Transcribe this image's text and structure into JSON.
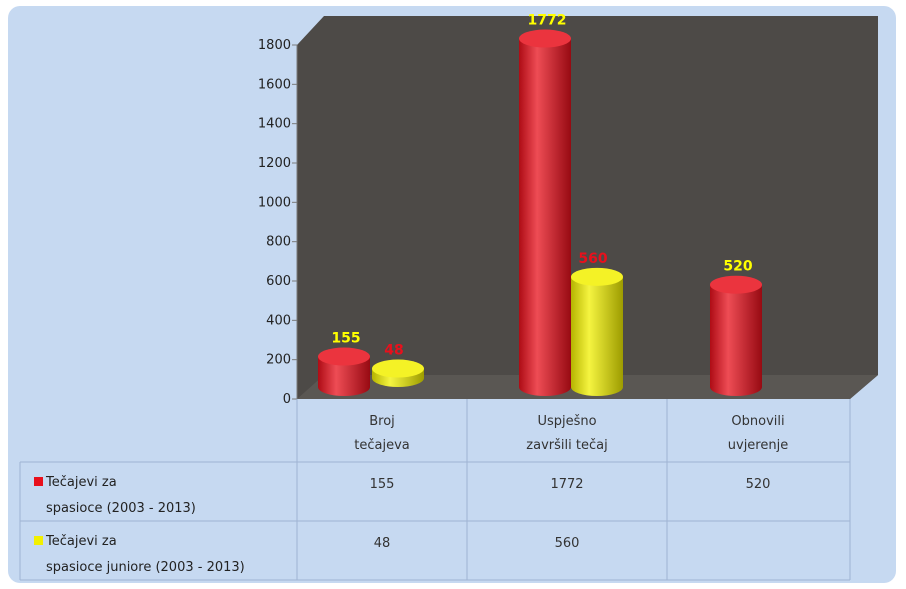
{
  "chart_data": {
    "type": "bar",
    "title": "",
    "xlabel": "",
    "ylabel": "",
    "ylim": [
      0,
      1800
    ],
    "yticks": [
      0,
      200,
      400,
      600,
      800,
      1000,
      1200,
      1400,
      1600,
      1800
    ],
    "categories": [
      [
        "Broj",
        "tečajeva"
      ],
      [
        "Uspješno",
        "završili tečaj"
      ],
      [
        "Obnovili",
        "uvjerenje"
      ]
    ],
    "series": [
      {
        "name": "Tečajevi za spasioce (2003 - 2013)",
        "name_lines": [
          "Tečajevi za",
          "spasioce (2003 - 2013)"
        ],
        "color": "#e8101c",
        "label_color": "#ffff00",
        "values": [
          155,
          1772,
          520
        ],
        "value_labels": [
          "155",
          "1772",
          "520"
        ]
      },
      {
        "name": "Tečajevi za spasioce juniore (2003 - 2013)",
        "name_lines": [
          "Tečajevi za",
          "spasioce juniore (2003 - 2013)"
        ],
        "color": "#f2f000",
        "label_color": "#e8101c",
        "values": [
          48,
          560,
          null
        ],
        "value_labels": [
          "48",
          "560",
          ""
        ]
      }
    ],
    "grid": false,
    "legend": "data-table",
    "colors": {
      "plot_background": "#4d4a47",
      "chart_background": "#c6d9f1"
    }
  }
}
